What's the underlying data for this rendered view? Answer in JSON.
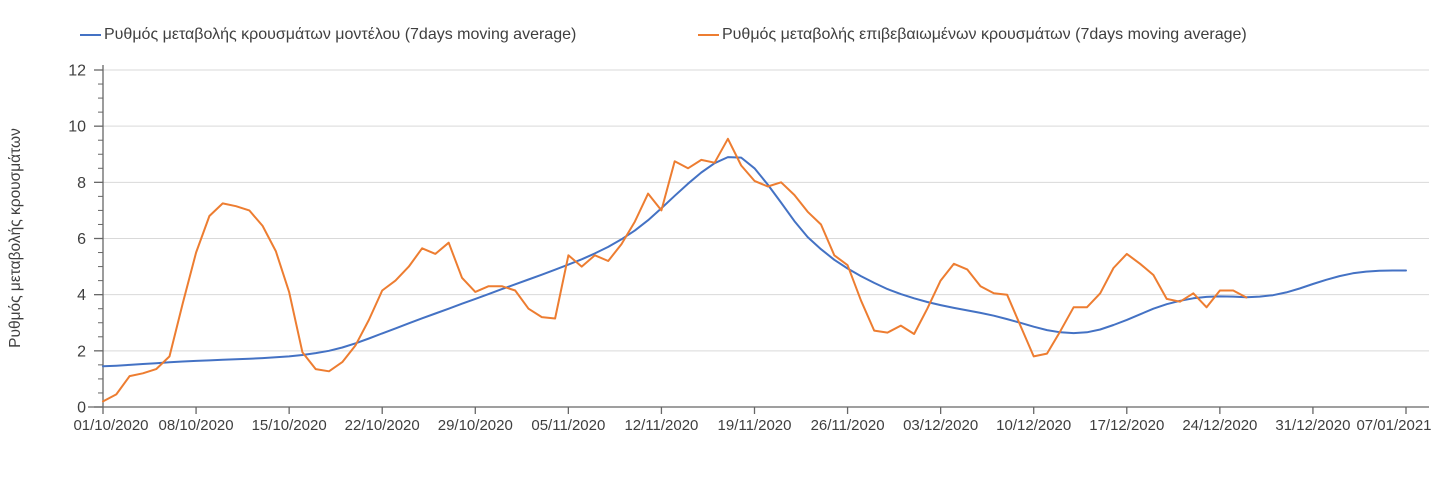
{
  "chart_data": {
    "type": "line",
    "title": "",
    "xlabel": "",
    "ylabel": "Ρυθμός μεταβολής κρουσμάτων",
    "ylim": [
      0,
      12
    ],
    "y_ticks": [
      0,
      2,
      4,
      6,
      8,
      10,
      12
    ],
    "y_minor_tick_step": 0.5,
    "grid": "horizontal-major",
    "legend_position": "top",
    "x_is_dates": true,
    "x_days_span": 98,
    "x_tick_every_days": 7,
    "x_tick_labels": [
      "01/10/2020",
      "08/10/2020",
      "15/10/2020",
      "22/10/2020",
      "29/10/2020",
      "05/11/2020",
      "12/11/2020",
      "19/11/2020",
      "26/11/2020",
      "03/12/2020",
      "10/12/2020",
      "17/12/2020",
      "24/12/2020",
      "31/12/2020",
      "07/01/2021"
    ],
    "series": [
      {
        "name": "Ρυθμός μεταβολής κρουσμάτων μοντέλου (7days moving average)",
        "color": "#4472C4",
        "start_day": 0,
        "values": [
          1.45,
          1.47,
          1.5,
          1.53,
          1.56,
          1.59,
          1.62,
          1.64,
          1.66,
          1.68,
          1.7,
          1.72,
          1.74,
          1.77,
          1.8,
          1.85,
          1.92,
          2.0,
          2.12,
          2.27,
          2.44,
          2.62,
          2.8,
          2.98,
          3.16,
          3.33,
          3.5,
          3.68,
          3.85,
          4.02,
          4.2,
          4.37,
          4.54,
          4.71,
          4.89,
          5.07,
          5.26,
          5.47,
          5.7,
          5.97,
          6.28,
          6.65,
          7.08,
          7.52,
          7.95,
          8.35,
          8.68,
          8.9,
          8.88,
          8.5,
          7.92,
          7.28,
          6.62,
          6.05,
          5.62,
          5.24,
          4.93,
          4.66,
          4.42,
          4.2,
          4.02,
          3.87,
          3.74,
          3.63,
          3.53,
          3.44,
          3.35,
          3.25,
          3.13,
          3.0,
          2.86,
          2.74,
          2.66,
          2.63,
          2.66,
          2.76,
          2.92,
          3.1,
          3.3,
          3.5,
          3.66,
          3.78,
          3.87,
          3.92,
          3.94,
          3.93,
          3.91,
          3.93,
          3.98,
          4.08,
          4.22,
          4.38,
          4.53,
          4.66,
          4.76,
          4.82,
          4.85,
          4.86,
          4.86
        ]
      },
      {
        "name": "Ρυθμός μεταβολής επιβεβαιωμένων κρουσμάτων (7days moving average)",
        "color": "#ED7D31",
        "start_day": 0,
        "values": [
          0.2,
          0.45,
          1.1,
          1.2,
          1.35,
          1.8,
          3.7,
          5.5,
          6.8,
          7.25,
          7.15,
          7.0,
          6.45,
          5.55,
          4.1,
          1.95,
          1.35,
          1.27,
          1.6,
          2.2,
          3.1,
          4.15,
          4.5,
          5.0,
          5.65,
          5.45,
          5.85,
          4.6,
          4.1,
          4.3,
          4.3,
          4.15,
          3.5,
          3.2,
          3.15,
          5.4,
          5.0,
          5.4,
          5.2,
          5.8,
          6.6,
          7.6,
          7.0,
          8.75,
          8.5,
          8.8,
          8.7,
          9.55,
          8.6,
          8.05,
          7.85,
          8.0,
          7.55,
          6.95,
          6.5,
          5.4,
          5.05,
          3.8,
          2.72,
          2.65,
          2.9,
          2.6,
          3.5,
          4.5,
          5.1,
          4.9,
          4.3,
          4.05,
          4.0,
          2.9,
          1.8,
          1.9,
          2.7,
          3.55,
          3.55,
          4.05,
          4.95,
          5.45,
          5.1,
          4.7,
          3.85,
          3.75,
          4.05,
          3.55,
          4.15,
          4.15,
          3.9
        ]
      }
    ],
    "axis_color": "#666666",
    "grid_color": "#d9d9d9",
    "text_color": "#3f3f3f"
  }
}
